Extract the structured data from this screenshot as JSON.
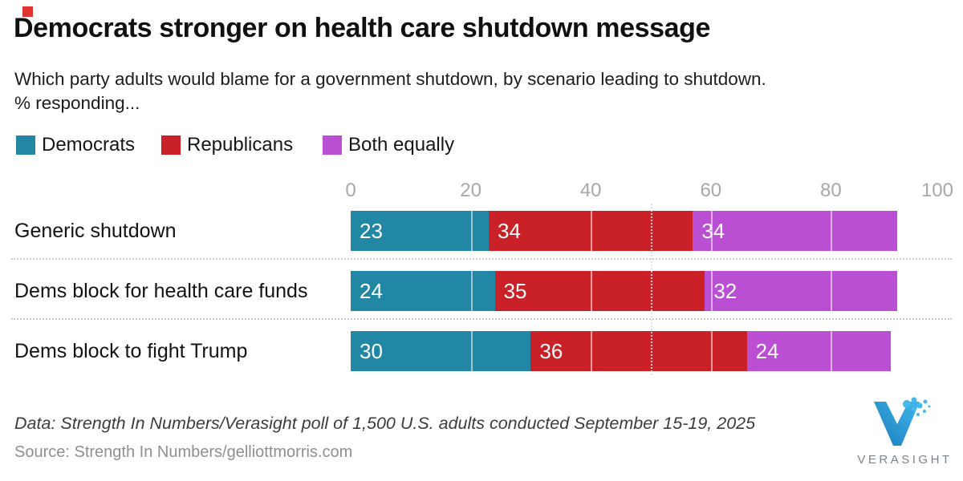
{
  "brand": {
    "mark_color": "#e0342e"
  },
  "title": "Democrats stronger on health care shutdown message",
  "subtitle_line1": "Which party adults would blame for a government shutdown, by scenario leading to shutdown.",
  "subtitle_line2": "% responding...",
  "legend": {
    "items": [
      {
        "label": "Democrats",
        "color": "#2286a5"
      },
      {
        "label": "Republicans",
        "color": "#c92127"
      },
      {
        "label": "Both equally",
        "color": "#ba4fd3"
      }
    ]
  },
  "chart_data": {
    "type": "bar",
    "orientation": "horizontal-stacked",
    "categories": [
      "Generic shutdown",
      "Dems block for health care funds",
      "Dems block to fight Trump"
    ],
    "series": [
      {
        "name": "Democrats",
        "color": "#2286a5",
        "values": [
          23,
          24,
          30
        ]
      },
      {
        "name": "Republicans",
        "color": "#c92127",
        "values": [
          34,
          35,
          36
        ]
      },
      {
        "name": "Both equally",
        "color": "#ba4fd3",
        "values": [
          34,
          32,
          24
        ]
      }
    ],
    "x_ticks": [
      0,
      20,
      40,
      60,
      80,
      100
    ],
    "xlim": [
      0,
      100
    ],
    "reference_line_x": 50,
    "value_label_color": "#ffffff",
    "tick_label_color": "#a8a8a8",
    "legend_position": "top",
    "gridlines": "white lines over bars at 20/40/60/80, dotted row separators"
  },
  "footer": {
    "data_line": "Data: Strength In Numbers/Verasight poll of 1,500 U.S. adults conducted September 15-19, 2025",
    "source_line": "Source: Strength In Numbers/gelliottmorris.com"
  },
  "logo": {
    "text": "VERASIGHT",
    "blue_light": "#45b9ea",
    "blue_dark": "#1a7dbd"
  }
}
